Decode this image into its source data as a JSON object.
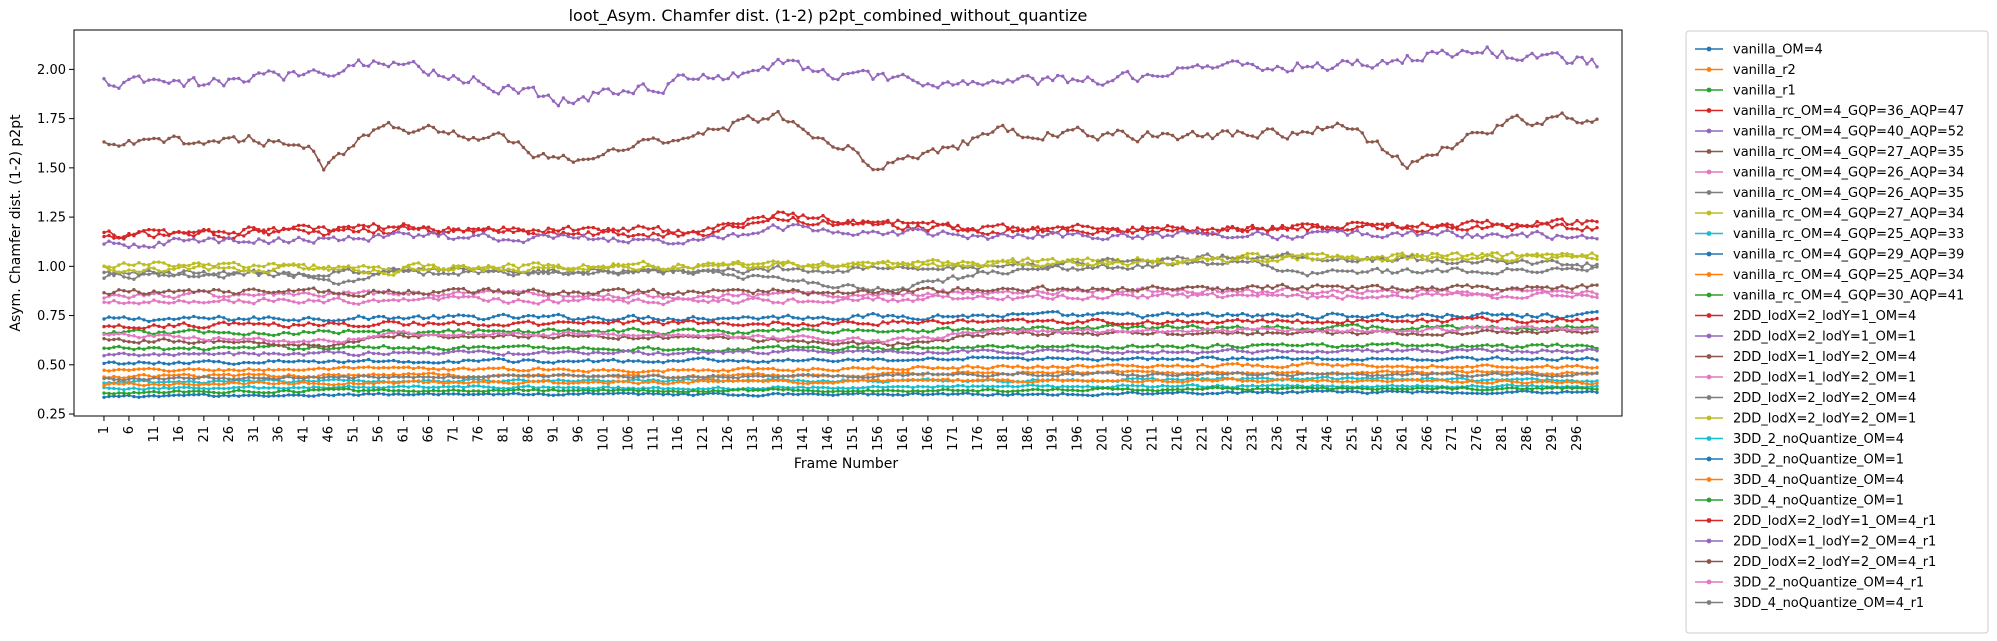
{
  "chart_data": {
    "type": "line",
    "title": "loot_Asym. Chamfer dist. (1-2) p2pt_combined_without_quantize",
    "xlabel": "Frame Number",
    "ylabel": "Asym. Chamfer dist. (1-2) p2pt",
    "xlim": [
      -5,
      305
    ],
    "ylim": [
      0.24,
      2.2
    ],
    "x_ticks": [
      1,
      6,
      11,
      16,
      21,
      26,
      31,
      36,
      41,
      46,
      51,
      56,
      61,
      66,
      71,
      76,
      81,
      86,
      91,
      96,
      101,
      106,
      111,
      116,
      121,
      126,
      131,
      136,
      141,
      146,
      151,
      156,
      161,
      166,
      171,
      176,
      181,
      186,
      191,
      196,
      201,
      206,
      211,
      216,
      221,
      226,
      231,
      236,
      241,
      246,
      251,
      256,
      261,
      266,
      271,
      276,
      281,
      286,
      291,
      296
    ],
    "y_ticks": [
      0.25,
      0.5,
      0.75,
      1.0,
      1.25,
      1.5,
      1.75,
      2.0
    ],
    "y_tick_labels": [
      "0.25",
      "0.50",
      "0.75",
      "1.00",
      "1.25",
      "1.50",
      "1.75",
      "2.00"
    ],
    "grid": false,
    "legend_position": "outside-right",
    "frames": [
      1,
      300
    ],
    "series": [
      {
        "name": "vanilla_OM=4",
        "color": "#1f77b4",
        "anchors": [
          [
            1,
            0.73
          ],
          [
            60,
            0.74
          ],
          [
            120,
            0.74
          ],
          [
            180,
            0.75
          ],
          [
            240,
            0.75
          ],
          [
            300,
            0.75
          ]
        ]
      },
      {
        "name": "vanilla_r2",
        "color": "#ff7f0e",
        "anchors": [
          [
            1,
            0.47
          ],
          [
            60,
            0.48
          ],
          [
            120,
            0.47
          ],
          [
            180,
            0.49
          ],
          [
            240,
            0.5
          ],
          [
            300,
            0.49
          ]
        ]
      },
      {
        "name": "vanilla_r1",
        "color": "#2ca02c",
        "anchors": [
          [
            1,
            0.58
          ],
          [
            60,
            0.59
          ],
          [
            120,
            0.58
          ],
          [
            180,
            0.59
          ],
          [
            240,
            0.6
          ],
          [
            300,
            0.59
          ]
        ]
      },
      {
        "name": "vanilla_rc_OM=4_GQP=36_AQP=47",
        "color": "#d62728",
        "anchors": [
          [
            1,
            1.16
          ],
          [
            60,
            1.2
          ],
          [
            120,
            1.18
          ],
          [
            136,
            1.26
          ],
          [
            180,
            1.19
          ],
          [
            240,
            1.2
          ],
          [
            300,
            1.22
          ]
        ]
      },
      {
        "name": "vanilla_rc_OM=4_GQP=40_AQP=52",
        "color": "#9467bd",
        "anchors": [
          [
            1,
            1.93
          ],
          [
            20,
            1.92
          ],
          [
            40,
            1.98
          ],
          [
            56,
            2.05
          ],
          [
            80,
            1.92
          ],
          [
            92,
            1.85
          ],
          [
            120,
            1.95
          ],
          [
            136,
            2.03
          ],
          [
            160,
            1.93
          ],
          [
            200,
            1.94
          ],
          [
            220,
            2.02
          ],
          [
            250,
            2.02
          ],
          [
            275,
            2.1
          ],
          [
            300,
            2.03
          ]
        ]
      },
      {
        "name": "vanilla_rc_OM=4_GQP=27_AQP=35",
        "color": "#8c564b",
        "anchors": [
          [
            1,
            1.61
          ],
          [
            30,
            1.65
          ],
          [
            42,
            1.62
          ],
          [
            45,
            1.47
          ],
          [
            56,
            1.73
          ],
          [
            80,
            1.65
          ],
          [
            92,
            1.52
          ],
          [
            110,
            1.63
          ],
          [
            136,
            1.77
          ],
          [
            150,
            1.6
          ],
          [
            156,
            1.5
          ],
          [
            180,
            1.68
          ],
          [
            220,
            1.66
          ],
          [
            250,
            1.7
          ],
          [
            262,
            1.52
          ],
          [
            280,
            1.72
          ],
          [
            300,
            1.76
          ]
        ]
      },
      {
        "name": "vanilla_rc_OM=4_GQP=26_AQP=34",
        "color": "#e377c2",
        "anchors": [
          [
            1,
            0.85
          ],
          [
            60,
            0.86
          ],
          [
            120,
            0.85
          ],
          [
            180,
            0.87
          ],
          [
            240,
            0.88
          ],
          [
            300,
            0.87
          ]
        ]
      },
      {
        "name": "vanilla_rc_OM=4_GQP=26_AQP=35",
        "color": "#7f7f7f",
        "anchors": [
          [
            1,
            0.95
          ],
          [
            40,
            0.96
          ],
          [
            48,
            0.9
          ],
          [
            60,
            0.98
          ],
          [
            120,
            0.97
          ],
          [
            160,
            0.88
          ],
          [
            180,
            0.98
          ],
          [
            230,
            1.02
          ],
          [
            240,
            0.96
          ],
          [
            300,
            1.0
          ]
        ]
      },
      {
        "name": "vanilla_rc_OM=4_GQP=27_AQP=34",
        "color": "#bcbd22",
        "anchors": [
          [
            1,
            1.01
          ],
          [
            60,
            0.99
          ],
          [
            120,
            1.01
          ],
          [
            180,
            1.02
          ],
          [
            240,
            1.05
          ],
          [
            300,
            1.06
          ]
        ]
      },
      {
        "name": "vanilla_rc_OM=4_GQP=25_AQP=33",
        "color": "#17becf",
        "anchors": [
          [
            1,
            0.41
          ],
          [
            60,
            0.42
          ],
          [
            120,
            0.42
          ],
          [
            180,
            0.42
          ],
          [
            240,
            0.43
          ],
          [
            300,
            0.42
          ]
        ]
      },
      {
        "name": "vanilla_rc_OM=4_GQP=29_AQP=39",
        "color": "#1f77b4",
        "anchors": [
          [
            1,
            0.51
          ],
          [
            60,
            0.52
          ],
          [
            120,
            0.52
          ],
          [
            180,
            0.53
          ],
          [
            240,
            0.53
          ],
          [
            300,
            0.53
          ]
        ]
      },
      {
        "name": "vanilla_rc_OM=4_GQP=25_AQP=34",
        "color": "#ff7f0e",
        "anchors": [
          [
            1,
            0.44
          ],
          [
            60,
            0.45
          ],
          [
            120,
            0.44
          ],
          [
            180,
            0.46
          ],
          [
            240,
            0.46
          ],
          [
            300,
            0.46
          ]
        ]
      },
      {
        "name": "vanilla_rc_OM=4_GQP=30_AQP=41",
        "color": "#2ca02c",
        "anchors": [
          [
            1,
            0.66
          ],
          [
            60,
            0.67
          ],
          [
            120,
            0.67
          ],
          [
            180,
            0.68
          ],
          [
            240,
            0.69
          ],
          [
            300,
            0.69
          ]
        ]
      },
      {
        "name": "2DD_lodX=2_lodY=1_OM=4",
        "color": "#d62728",
        "anchors": [
          [
            1,
            1.15
          ],
          [
            60,
            1.18
          ],
          [
            120,
            1.17
          ],
          [
            136,
            1.24
          ],
          [
            180,
            1.18
          ],
          [
            240,
            1.19
          ],
          [
            300,
            1.2
          ]
        ]
      },
      {
        "name": "2DD_lodX=2_lodY=1_OM=1",
        "color": "#9467bd",
        "anchors": [
          [
            1,
            1.11
          ],
          [
            60,
            1.15
          ],
          [
            120,
            1.14
          ],
          [
            136,
            1.2
          ],
          [
            180,
            1.15
          ],
          [
            240,
            1.16
          ],
          [
            300,
            1.16
          ]
        ]
      },
      {
        "name": "2DD_lodX=1_lodY=2_OM=4",
        "color": "#8c564b",
        "anchors": [
          [
            1,
            0.63
          ],
          [
            46,
            0.6
          ],
          [
            60,
            0.65
          ],
          [
            120,
            0.64
          ],
          [
            158,
            0.6
          ],
          [
            180,
            0.66
          ],
          [
            240,
            0.66
          ],
          [
            300,
            0.67
          ]
        ]
      },
      {
        "name": "2DD_lodX=1_lodY=2_OM=1",
        "color": "#e377c2",
        "anchors": [
          [
            1,
            0.65
          ],
          [
            46,
            0.62
          ],
          [
            60,
            0.66
          ],
          [
            120,
            0.65
          ],
          [
            158,
            0.62
          ],
          [
            180,
            0.67
          ],
          [
            240,
            0.68
          ],
          [
            300,
            0.68
          ]
        ]
      },
      {
        "name": "2DD_lodX=2_lodY=2_OM=4",
        "color": "#7f7f7f",
        "anchors": [
          [
            1,
            0.96
          ],
          [
            60,
            0.97
          ],
          [
            120,
            0.98
          ],
          [
            180,
            1.0
          ],
          [
            230,
            1.05
          ],
          [
            300,
            1.01
          ]
        ]
      },
      {
        "name": "2DD_lodX=2_lodY=2_OM=1",
        "color": "#bcbd22",
        "anchors": [
          [
            1,
            0.99
          ],
          [
            60,
            0.98
          ],
          [
            120,
            1.0
          ],
          [
            180,
            1.01
          ],
          [
            240,
            1.04
          ],
          [
            300,
            1.05
          ]
        ]
      },
      {
        "name": "3DD_2_noQuantize_OM=4",
        "color": "#17becf",
        "anchors": [
          [
            1,
            0.38
          ],
          [
            60,
            0.39
          ],
          [
            120,
            0.38
          ],
          [
            180,
            0.39
          ],
          [
            240,
            0.39
          ],
          [
            300,
            0.39
          ]
        ]
      },
      {
        "name": "3DD_2_noQuantize_OM=1",
        "color": "#1f77b4",
        "anchors": [
          [
            1,
            0.34
          ],
          [
            60,
            0.35
          ],
          [
            120,
            0.35
          ],
          [
            180,
            0.35
          ],
          [
            240,
            0.36
          ],
          [
            300,
            0.36
          ]
        ]
      },
      {
        "name": "3DD_4_noQuantize_OM=4",
        "color": "#ff7f0e",
        "anchors": [
          [
            1,
            0.4
          ],
          [
            60,
            0.41
          ],
          [
            120,
            0.41
          ],
          [
            180,
            0.42
          ],
          [
            240,
            0.42
          ],
          [
            300,
            0.41
          ]
        ]
      },
      {
        "name": "3DD_4_noQuantize_OM=1",
        "color": "#2ca02c",
        "anchors": [
          [
            1,
            0.36
          ],
          [
            60,
            0.37
          ],
          [
            120,
            0.37
          ],
          [
            180,
            0.37
          ],
          [
            240,
            0.38
          ],
          [
            300,
            0.38
          ]
        ]
      },
      {
        "name": "2DD_lodX=2_lodY=1_OM=4_r1",
        "color": "#d62728",
        "anchors": [
          [
            1,
            0.7
          ],
          [
            60,
            0.71
          ],
          [
            120,
            0.71
          ],
          [
            180,
            0.72
          ],
          [
            240,
            0.72
          ],
          [
            300,
            0.73
          ]
        ]
      },
      {
        "name": "2DD_lodX=1_lodY=2_OM=4_r1",
        "color": "#9467bd",
        "anchors": [
          [
            1,
            0.55
          ],
          [
            60,
            0.56
          ],
          [
            120,
            0.56
          ],
          [
            180,
            0.57
          ],
          [
            240,
            0.57
          ],
          [
            300,
            0.57
          ]
        ]
      },
      {
        "name": "2DD_lodX=2_lodY=2_OM=4_r1",
        "color": "#8c564b",
        "anchors": [
          [
            1,
            0.87
          ],
          [
            60,
            0.87
          ],
          [
            120,
            0.87
          ],
          [
            180,
            0.88
          ],
          [
            240,
            0.89
          ],
          [
            300,
            0.89
          ]
        ]
      },
      {
        "name": "3DD_2_noQuantize_OM=4_r1",
        "color": "#e377c2",
        "anchors": [
          [
            1,
            0.82
          ],
          [
            60,
            0.83
          ],
          [
            120,
            0.82
          ],
          [
            180,
            0.84
          ],
          [
            240,
            0.85
          ],
          [
            300,
            0.85
          ]
        ]
      },
      {
        "name": "3DD_4_noQuantize_OM=4_r1",
        "color": "#7f7f7f",
        "anchors": [
          [
            1,
            0.43
          ],
          [
            60,
            0.44
          ],
          [
            120,
            0.44
          ],
          [
            180,
            0.45
          ],
          [
            240,
            0.45
          ],
          [
            300,
            0.45
          ]
        ]
      }
    ]
  }
}
